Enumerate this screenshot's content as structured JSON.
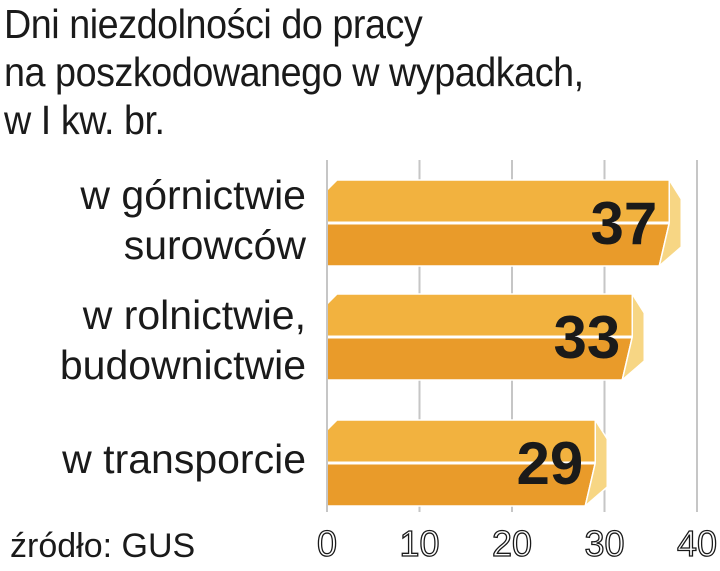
{
  "chart_data": {
    "type": "bar",
    "orientation": "horizontal",
    "title_lines": [
      "Dni niezdolności do pracy",
      "na poszkodowanego w wypadkach,",
      "w I kw. br."
    ],
    "categories": [
      [
        "w górnictwie",
        "surowców"
      ],
      [
        "w rolnictwie,",
        "budownictwie"
      ],
      [
        "w transporcie"
      ]
    ],
    "values": [
      37,
      33,
      29
    ],
    "xlim": [
      0,
      40
    ],
    "ticks": [
      "0",
      "10",
      "20",
      "30",
      "40"
    ],
    "grid": true,
    "bar_colors": {
      "top": "#f2b23f",
      "bottom": "#e99b2a",
      "cap": "#f7d684",
      "gridline": "#c6c6c6"
    },
    "source": "źródło: GUS"
  }
}
